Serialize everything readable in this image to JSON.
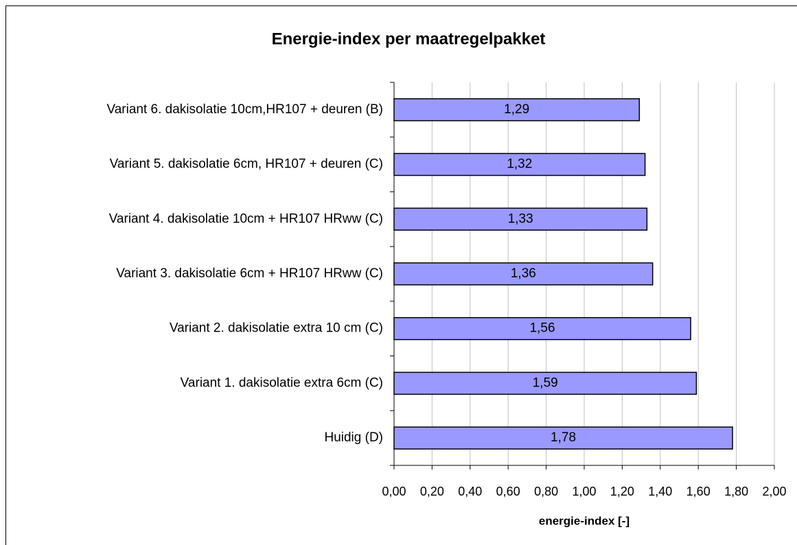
{
  "chart_data": {
    "type": "bar",
    "orientation": "horizontal",
    "title": "Energie-index per maatregelpakket",
    "x_label": "energie-index [-]",
    "categories": [
      "Variant 6. dakisolatie 10cm,HR107 + deuren (B)",
      "Variant 5. dakisolatie 6cm, HR107 + deuren (C)",
      "Variant 4. dakisolatie 10cm + HR107 HRww (C)",
      "Variant 3. dakisolatie 6cm + HR107 HRww (C)",
      "Variant 2. dakisolatie extra 10 cm (C)",
      "Variant 1. dakisolatie extra 6cm (C)",
      "Huidig (D)"
    ],
    "values": [
      1.29,
      1.32,
      1.33,
      1.36,
      1.56,
      1.59,
      1.78
    ],
    "value_labels": [
      "1,29",
      "1,32",
      "1,33",
      "1,36",
      "1,56",
      "1,59",
      "1,78"
    ],
    "color": "#9999ff",
    "xlim": [
      0,
      2
    ],
    "xticks": [
      {
        "value": 0,
        "label": "0,00"
      },
      {
        "value": 0.2,
        "label": "0,20"
      },
      {
        "value": 0.4,
        "label": "0,40"
      },
      {
        "value": 0.6,
        "label": "0,60"
      },
      {
        "value": 0.8,
        "label": "0,80"
      },
      {
        "value": 1,
        "label": "1,00"
      },
      {
        "value": 1.2,
        "label": "1,20"
      },
      {
        "value": 1.4,
        "label": "1,40"
      },
      {
        "value": 1.6,
        "label": "1,60"
      },
      {
        "value": 1.8,
        "label": "1,80"
      },
      {
        "value": 2,
        "label": "2,00"
      }
    ],
    "grid": true
  }
}
